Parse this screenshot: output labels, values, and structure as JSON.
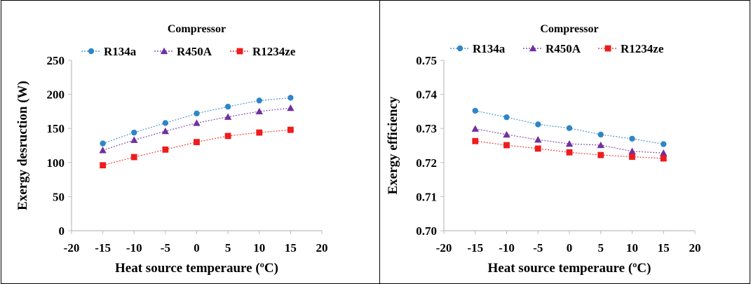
{
  "chart_data": [
    {
      "type": "line",
      "title": "Compressor",
      "xlabel": "Heat source temperaure (ºC)",
      "ylabel": "Exergy desruction (W)",
      "xlim": [
        -20,
        20
      ],
      "ylim": [
        0,
        250
      ],
      "xticks": [
        "-20",
        "-15",
        "-10",
        "-5",
        "0",
        "5",
        "10",
        "15",
        "20"
      ],
      "yticks": [
        "0",
        "50",
        "100",
        "150",
        "200",
        "250"
      ],
      "grid": false,
      "legend_position": "top",
      "x": [
        -15,
        -10,
        -5,
        0,
        5,
        10,
        15
      ],
      "series": [
        {
          "name": "R134a",
          "marker": "circle",
          "color": "#2e86c8",
          "values": [
            128,
            144,
            158,
            172,
            182,
            191,
            195
          ]
        },
        {
          "name": "R450A",
          "marker": "triangle",
          "color": "#7030a0",
          "values": [
            118,
            133,
            146,
            158,
            167,
            175,
            180
          ]
        },
        {
          "name": "R1234ze",
          "marker": "square",
          "color": "#ee1c1c",
          "values": [
            96,
            108,
            119,
            130,
            139,
            144,
            148
          ]
        }
      ]
    },
    {
      "type": "line",
      "title": "Compressor",
      "xlabel": "Heat source temperaure (ºC)",
      "ylabel": "Exergy efficiency",
      "xlim": [
        -20,
        20
      ],
      "ylim": [
        0.7,
        0.75
      ],
      "xticks": [
        "-20",
        "-15",
        "-10",
        "-5",
        "0",
        "5",
        "10",
        "15",
        "20"
      ],
      "yticks": [
        "0.70",
        "0.71",
        "0.72",
        "0.73",
        "0.74",
        "0.75"
      ],
      "grid": false,
      "legend_position": "top",
      "x": [
        -15,
        -10,
        -5,
        0,
        5,
        10,
        15
      ],
      "series": [
        {
          "name": "R134a",
          "marker": "circle",
          "color": "#2e86c8",
          "values": [
            0.7352,
            0.7333,
            0.7312,
            0.7301,
            0.7282,
            0.727,
            0.7254
          ]
        },
        {
          "name": "R450A",
          "marker": "triangle",
          "color": "#7030a0",
          "values": [
            0.7299,
            0.7282,
            0.7267,
            0.7255,
            0.7251,
            0.7233,
            0.7228
          ]
        },
        {
          "name": "R1234ze",
          "marker": "square",
          "color": "#ee1c1c",
          "values": [
            0.7263,
            0.7251,
            0.7241,
            0.723,
            0.7222,
            0.7217,
            0.7212
          ]
        }
      ]
    }
  ]
}
